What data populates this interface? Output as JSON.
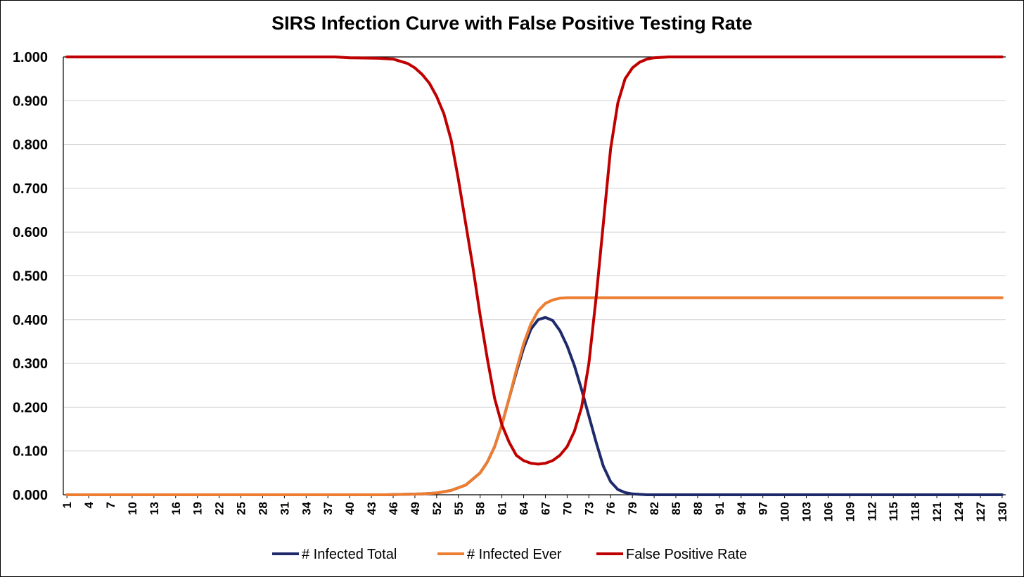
{
  "chart_data": {
    "type": "line",
    "title": "SIRS Infection Curve with False Positive Testing Rate",
    "xlabel": "",
    "ylabel": "",
    "xlim": [
      1,
      130
    ],
    "ylim": [
      0,
      1
    ],
    "y_ticks": [
      "0.000",
      "0.100",
      "0.200",
      "0.300",
      "0.400",
      "0.500",
      "0.600",
      "0.700",
      "0.800",
      "0.900",
      "1.000"
    ],
    "x_ticks": [
      "1",
      "4",
      "7",
      "10",
      "13",
      "16",
      "19",
      "22",
      "25",
      "28",
      "31",
      "34",
      "37",
      "40",
      "43",
      "46",
      "49",
      "52",
      "55",
      "58",
      "61",
      "64",
      "67",
      "70",
      "73",
      "76",
      "79",
      "82",
      "85",
      "88",
      "91",
      "94",
      "97",
      "100",
      "103",
      "106",
      "109",
      "112",
      "115",
      "118",
      "121",
      "124",
      "127",
      "130"
    ],
    "grid": true,
    "legend_position": "bottom",
    "series": [
      {
        "name": "# Infected Total",
        "color": "#1f2a6b",
        "points": [
          [
            1,
            0.0
          ],
          [
            45,
            0.0
          ],
          [
            50,
            0.002
          ],
          [
            52,
            0.004
          ],
          [
            54,
            0.01
          ],
          [
            56,
            0.022
          ],
          [
            58,
            0.05
          ],
          [
            59,
            0.075
          ],
          [
            60,
            0.11
          ],
          [
            61,
            0.16
          ],
          [
            62,
            0.22
          ],
          [
            63,
            0.28
          ],
          [
            64,
            0.335
          ],
          [
            65,
            0.378
          ],
          [
            66,
            0.4
          ],
          [
            67,
            0.405
          ],
          [
            68,
            0.398
          ],
          [
            69,
            0.375
          ],
          [
            70,
            0.34
          ],
          [
            71,
            0.295
          ],
          [
            72,
            0.24
          ],
          [
            73,
            0.18
          ],
          [
            74,
            0.12
          ],
          [
            75,
            0.065
          ],
          [
            76,
            0.03
          ],
          [
            77,
            0.012
          ],
          [
            78,
            0.005
          ],
          [
            79,
            0.002
          ],
          [
            81,
            0.0
          ],
          [
            130,
            0.0
          ]
        ]
      },
      {
        "name": "# Infected Ever",
        "color": "#ed7d31",
        "points": [
          [
            1,
            0.0
          ],
          [
            45,
            0.0
          ],
          [
            50,
            0.002
          ],
          [
            52,
            0.004
          ],
          [
            54,
            0.01
          ],
          [
            56,
            0.022
          ],
          [
            58,
            0.05
          ],
          [
            59,
            0.075
          ],
          [
            60,
            0.11
          ],
          [
            61,
            0.16
          ],
          [
            62,
            0.22
          ],
          [
            63,
            0.285
          ],
          [
            64,
            0.345
          ],
          [
            65,
            0.39
          ],
          [
            66,
            0.42
          ],
          [
            67,
            0.437
          ],
          [
            68,
            0.445
          ],
          [
            69,
            0.449
          ],
          [
            70,
            0.45
          ],
          [
            75,
            0.45
          ],
          [
            130,
            0.45
          ]
        ]
      },
      {
        "name": "False Positive Rate",
        "color": "#c00000",
        "points": [
          [
            1,
            1.0
          ],
          [
            38,
            1.0
          ],
          [
            40,
            0.998
          ],
          [
            44,
            0.997
          ],
          [
            46,
            0.995
          ],
          [
            47,
            0.99
          ],
          [
            48,
            0.985
          ],
          [
            49,
            0.975
          ],
          [
            50,
            0.96
          ],
          [
            51,
            0.94
          ],
          [
            52,
            0.91
          ],
          [
            53,
            0.87
          ],
          [
            54,
            0.81
          ],
          [
            55,
            0.72
          ],
          [
            56,
            0.62
          ],
          [
            57,
            0.52
          ],
          [
            58,
            0.41
          ],
          [
            59,
            0.31
          ],
          [
            60,
            0.22
          ],
          [
            61,
            0.16
          ],
          [
            62,
            0.12
          ],
          [
            63,
            0.09
          ],
          [
            64,
            0.078
          ],
          [
            65,
            0.072
          ],
          [
            66,
            0.07
          ],
          [
            67,
            0.072
          ],
          [
            68,
            0.078
          ],
          [
            69,
            0.09
          ],
          [
            70,
            0.11
          ],
          [
            71,
            0.145
          ],
          [
            72,
            0.2
          ],
          [
            73,
            0.3
          ],
          [
            74,
            0.45
          ],
          [
            75,
            0.62
          ],
          [
            76,
            0.79
          ],
          [
            77,
            0.895
          ],
          [
            78,
            0.95
          ],
          [
            79,
            0.975
          ],
          [
            80,
            0.988
          ],
          [
            81,
            0.995
          ],
          [
            82,
            0.998
          ],
          [
            84,
            1.0
          ],
          [
            130,
            1.0
          ]
        ]
      }
    ]
  }
}
